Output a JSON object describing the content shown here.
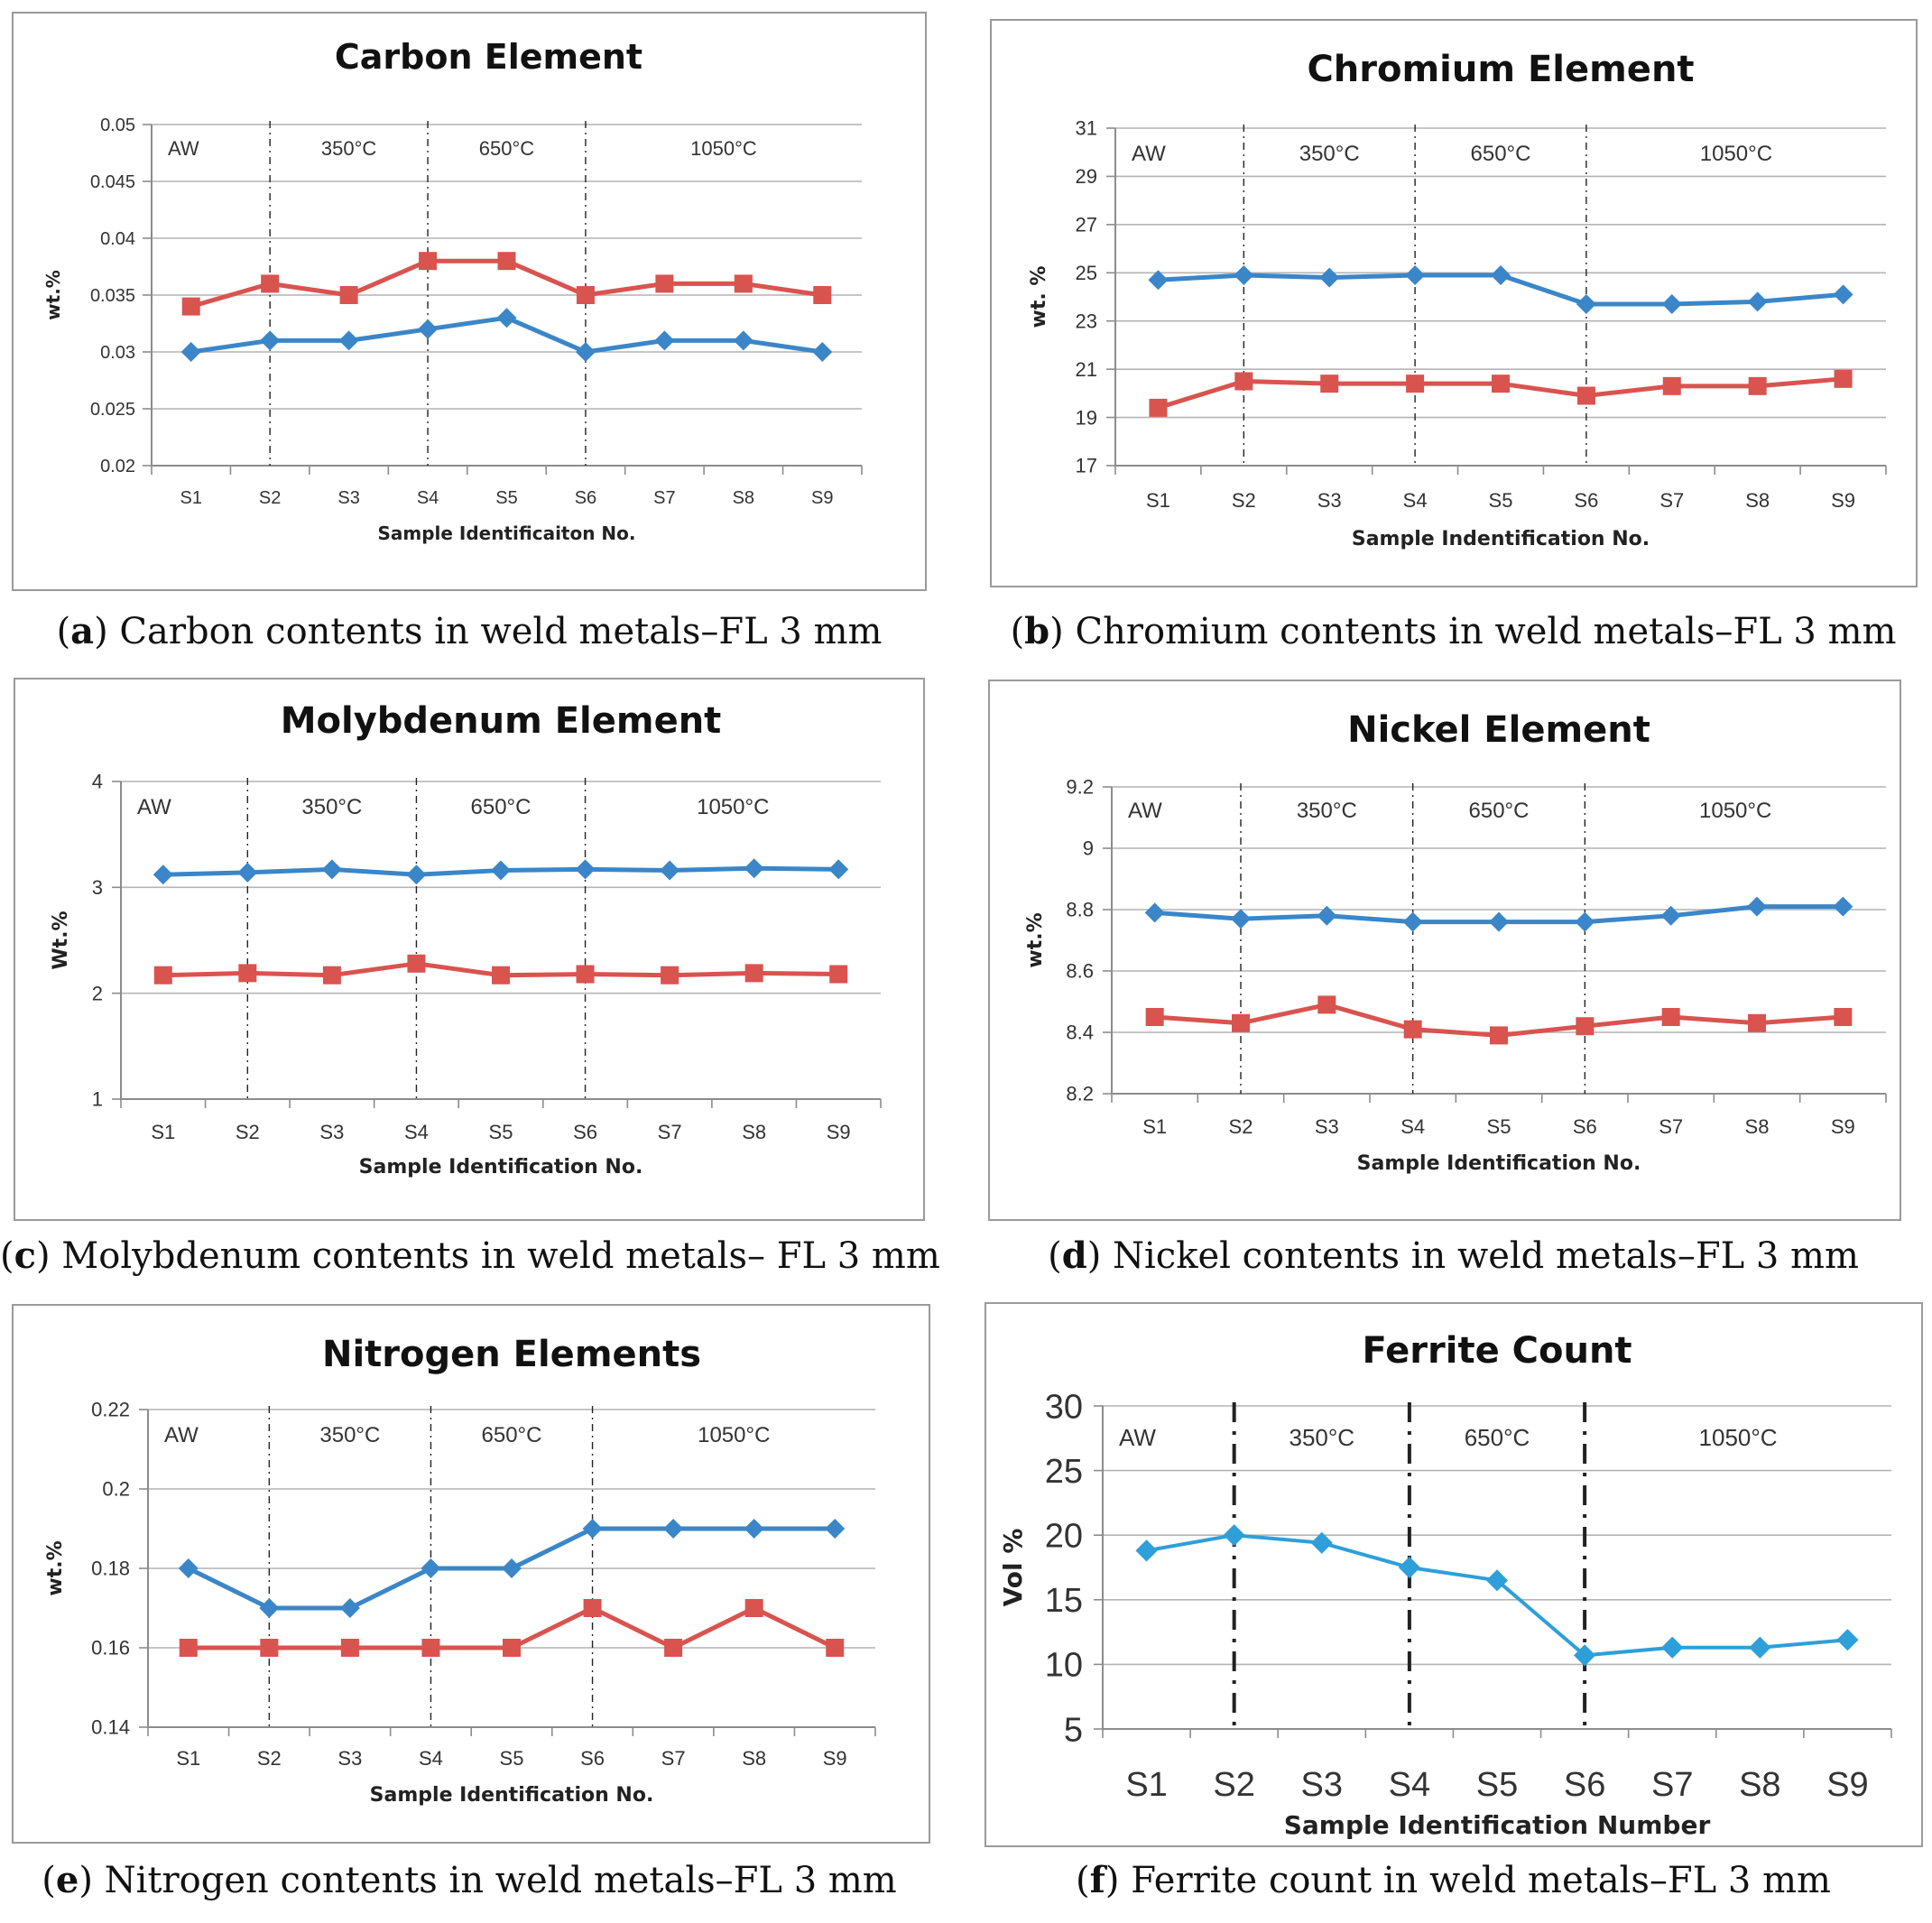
{
  "colors": {
    "blue": "#3a86c8",
    "red": "#d9534f",
    "ferrite": "#2e9fd8",
    "grid": "#b4b4b4"
  },
  "captions": [
    {
      "letter": "a",
      "text": "Carbon contents in weld metals–FL 3 mm"
    },
    {
      "letter": "b",
      "text": "Chromium contents in weld metals–FL 3 mm"
    },
    {
      "letter": "c",
      "text": "Molybdenum contents in weld metals– FL 3 mm"
    },
    {
      "letter": "d",
      "text": "Nickel contents in weld metals–FL 3 mm"
    },
    {
      "letter": "e",
      "text": "Nitrogen contents in weld metals–FL 3 mm"
    },
    {
      "letter": "f",
      "text": "Ferrite count in weld metals–FL 3 mm"
    }
  ],
  "chart_data": [
    {
      "type": "line",
      "title": "Carbon Element",
      "xlabel": "Sample Identificaiton No.",
      "ylabel": "wt.%",
      "categories": [
        "S1",
        "S2",
        "S3",
        "S4",
        "S5",
        "S6",
        "S7",
        "S8",
        "S9"
      ],
      "ylim": [
        0.02,
        0.05
      ],
      "yticks": [
        "0.02",
        "0.025",
        "0.03",
        "0.035",
        "0.04",
        "0.045",
        "0.05"
      ],
      "regions": [
        "AW",
        "350°C",
        "650°C",
        "1050°C"
      ],
      "series": [
        {
          "name": "blue",
          "marker": "diamond",
          "values": [
            0.03,
            0.031,
            0.031,
            0.032,
            0.033,
            0.03,
            0.031,
            0.031,
            0.03
          ]
        },
        {
          "name": "red",
          "marker": "square",
          "values": [
            0.034,
            0.036,
            0.035,
            0.038,
            0.038,
            0.035,
            0.036,
            0.036,
            0.035
          ]
        }
      ]
    },
    {
      "type": "line",
      "title": "Chromium Element",
      "xlabel": "Sample Indentification No.",
      "ylabel": "wt. %",
      "categories": [
        "S1",
        "S2",
        "S3",
        "S4",
        "S5",
        "S6",
        "S7",
        "S8",
        "S9"
      ],
      "ylim": [
        17,
        31
      ],
      "yticks": [
        "17",
        "19",
        "21",
        "23",
        "25",
        "27",
        "29",
        "31"
      ],
      "regions": [
        "AW",
        "350°C",
        "650°C",
        "1050°C"
      ],
      "series": [
        {
          "name": "blue",
          "marker": "diamond",
          "values": [
            24.7,
            24.9,
            24.8,
            24.9,
            24.9,
            23.7,
            23.7,
            23.8,
            24.1
          ]
        },
        {
          "name": "red",
          "marker": "square",
          "values": [
            19.4,
            20.5,
            20.4,
            20.4,
            20.4,
            19.9,
            20.3,
            20.3,
            20.6
          ]
        }
      ]
    },
    {
      "type": "line",
      "title": "Molybdenum Element",
      "xlabel": "Sample Identification No.",
      "ylabel": "Wt.%",
      "categories": [
        "S1",
        "S2",
        "S3",
        "S4",
        "S5",
        "S6",
        "S7",
        "S8",
        "S9"
      ],
      "ylim": [
        1,
        4
      ],
      "yticks": [
        "1",
        "2",
        "3",
        "4"
      ],
      "regions": [
        "AW",
        "350°C",
        "650°C",
        "1050°C"
      ],
      "series": [
        {
          "name": "blue",
          "marker": "diamond",
          "values": [
            3.12,
            3.14,
            3.17,
            3.12,
            3.16,
            3.17,
            3.16,
            3.18,
            3.17
          ]
        },
        {
          "name": "red",
          "marker": "square",
          "values": [
            2.17,
            2.19,
            2.17,
            2.28,
            2.17,
            2.18,
            2.17,
            2.19,
            2.18
          ]
        }
      ]
    },
    {
      "type": "line",
      "title": "Nickel Element",
      "xlabel": "Sample Identification No.",
      "ylabel": "wt.%",
      "categories": [
        "S1",
        "S2",
        "S3",
        "S4",
        "S5",
        "S6",
        "S7",
        "S8",
        "S9"
      ],
      "ylim": [
        8.2,
        9.2
      ],
      "yticks": [
        "8.2",
        "8.4",
        "8.6",
        "8.8",
        "9",
        "9.2"
      ],
      "regions": [
        "AW",
        "350°C",
        "650°C",
        "1050°C"
      ],
      "series": [
        {
          "name": "blue",
          "marker": "diamond",
          "values": [
            8.79,
            8.77,
            8.78,
            8.76,
            8.76,
            8.76,
            8.78,
            8.81,
            8.81
          ]
        },
        {
          "name": "red",
          "marker": "square",
          "values": [
            8.45,
            8.43,
            8.49,
            8.41,
            8.39,
            8.42,
            8.45,
            8.43,
            8.45
          ]
        }
      ]
    },
    {
      "type": "line",
      "title": "Nitrogen Elements",
      "xlabel": "Sample Identification No.",
      "ylabel": "wt.%",
      "categories": [
        "S1",
        "S2",
        "S3",
        "S4",
        "S5",
        "S6",
        "S7",
        "S8",
        "S9"
      ],
      "ylim": [
        0.14,
        0.22
      ],
      "yticks": [
        "0.14",
        "0.16",
        "0.18",
        "0.2",
        "0.22"
      ],
      "regions": [
        "AW",
        "350°C",
        "650°C",
        "1050°C"
      ],
      "series": [
        {
          "name": "blue",
          "marker": "diamond",
          "values": [
            0.18,
            0.17,
            0.17,
            0.18,
            0.18,
            0.19,
            0.19,
            0.19,
            0.19
          ]
        },
        {
          "name": "red",
          "marker": "square",
          "values": [
            0.16,
            0.16,
            0.16,
            0.16,
            0.16,
            0.17,
            0.16,
            0.17,
            0.16
          ]
        }
      ]
    },
    {
      "type": "line",
      "title": "Ferrite Count",
      "xlabel": "Sample Identification Number",
      "ylabel": "Vol %",
      "categories": [
        "S1",
        "S2",
        "S3",
        "S4",
        "S5",
        "S6",
        "S7",
        "S8",
        "S9"
      ],
      "ylim": [
        5,
        30
      ],
      "yticks": [
        "5",
        "10",
        "15",
        "20",
        "25",
        "30"
      ],
      "regions": [
        "AW",
        "350°C",
        "650°C",
        "1050°C"
      ],
      "series": [
        {
          "name": "ferrite",
          "marker": "diamond",
          "values": [
            18.8,
            20.0,
            19.4,
            17.5,
            16.5,
            10.7,
            11.3,
            11.3,
            11.9
          ]
        }
      ]
    }
  ]
}
